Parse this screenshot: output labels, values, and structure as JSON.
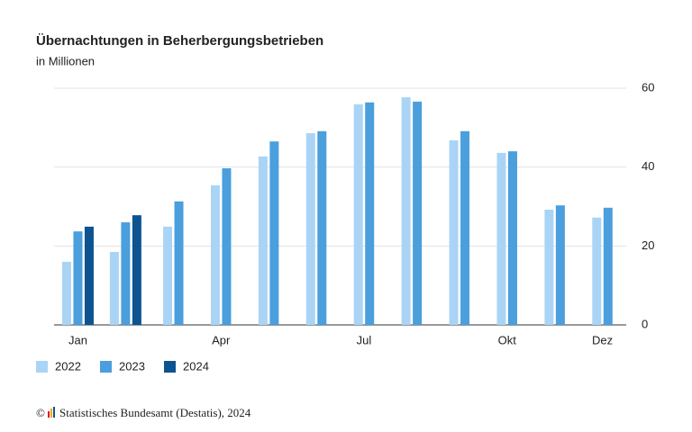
{
  "chart_data": {
    "type": "bar",
    "title": "Übernachtungen in Beherbergungsbetrieben",
    "subtitle": "in Millionen",
    "categories": [
      "Jan",
      null,
      null,
      "Apr",
      null,
      null,
      "Jul",
      null,
      null,
      "Okt",
      null,
      "Dez"
    ],
    "series": [
      {
        "name": "2022",
        "color": "#aad4f5",
        "values": [
          16,
          18.5,
          24.9,
          35.4,
          42.7,
          48.6,
          55.9,
          57.7,
          46.8,
          43.6,
          29.2,
          27.2
        ]
      },
      {
        "name": "2023",
        "color": "#4a9fdc",
        "values": [
          23.7,
          26,
          31.3,
          39.7,
          46.5,
          49.1,
          56.4,
          56.6,
          49.1,
          44,
          30.3,
          29.7
        ]
      },
      {
        "name": "2024",
        "color": "#0d5390",
        "values": [
          24.9,
          27.8,
          null,
          null,
          null,
          null,
          null,
          null,
          null,
          null,
          null,
          null
        ]
      }
    ],
    "ylim": [
      0,
      60
    ],
    "yticks": [
      0,
      20,
      40,
      60
    ],
    "grid": true,
    "legend": "bottom-left",
    "copyright": "©",
    "source": "Statistisches Bundesamt (Destatis), 2024"
  }
}
